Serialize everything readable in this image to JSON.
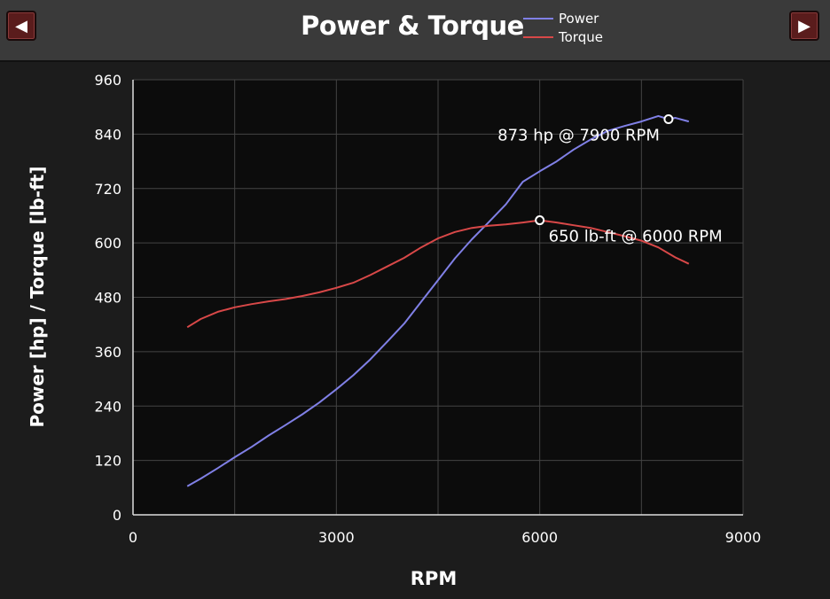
{
  "nav": {
    "prev_label": "◀",
    "next_label": "▶"
  },
  "chart_data": {
    "type": "line",
    "title": "Power & Torque",
    "xlabel": "RPM",
    "ylabel": "Power [hp] / Torque [lb-ft]",
    "xlim": [
      0,
      9000
    ],
    "ylim": [
      0,
      960
    ],
    "xticks": [
      0,
      3000,
      6000,
      9000
    ],
    "yticks": [
      0,
      120,
      240,
      360,
      480,
      600,
      720,
      840,
      960
    ],
    "grid": true,
    "legend_position": "top-right",
    "series": [
      {
        "name": "Power",
        "color": "#8080e6",
        "x": [
          800,
          1000,
          1250,
          1500,
          1750,
          2000,
          2250,
          2500,
          2750,
          3000,
          3250,
          3500,
          3750,
          4000,
          4250,
          4500,
          4750,
          5000,
          5250,
          5500,
          5750,
          6000,
          6250,
          6500,
          6750,
          7000,
          7250,
          7500,
          7750,
          7900,
          8000,
          8200
        ],
        "y": [
          63,
          80,
          103,
          127,
          150,
          175,
          198,
          222,
          248,
          277,
          308,
          343,
          382,
          422,
          470,
          518,
          566,
          608,
          646,
          685,
          735,
          758,
          780,
          806,
          828,
          847,
          858,
          868,
          880,
          873,
          876,
          868
        ]
      },
      {
        "name": "Torque",
        "color": "#d84848",
        "x": [
          800,
          1000,
          1250,
          1500,
          1750,
          2000,
          2250,
          2500,
          2750,
          3000,
          3250,
          3500,
          3750,
          4000,
          4250,
          4500,
          4750,
          5000,
          5250,
          5500,
          5750,
          6000,
          6250,
          6500,
          6750,
          7000,
          7250,
          7500,
          7750,
          8000,
          8200
        ],
        "y": [
          414,
          432,
          448,
          458,
          465,
          471,
          476,
          483,
          491,
          501,
          512,
          529,
          548,
          567,
          590,
          610,
          624,
          633,
          638,
          641,
          645,
          650,
          645,
          639,
          633,
          624,
          615,
          605,
          590,
          568,
          554
        ]
      }
    ],
    "annotations": [
      {
        "series": "Power",
        "x": 7900,
        "y": 873,
        "text": "873 hp @ 7900 RPM"
      },
      {
        "series": "Torque",
        "x": 6000,
        "y": 650,
        "text": "650 lb-ft @ 6000 RPM"
      }
    ]
  }
}
